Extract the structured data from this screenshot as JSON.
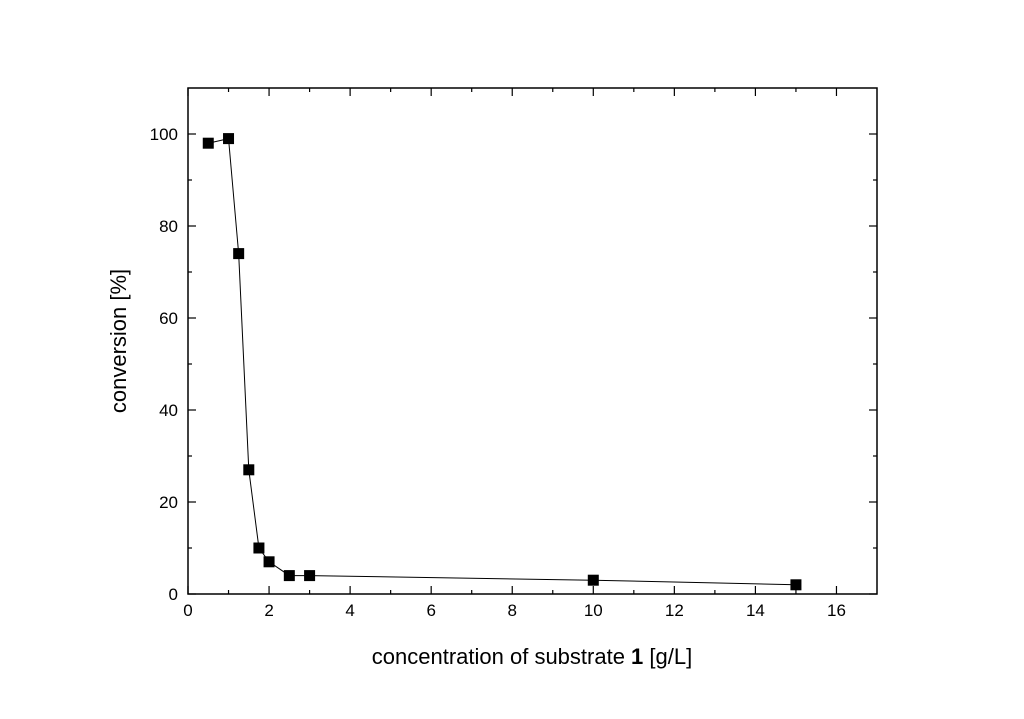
{
  "chart_data": {
    "type": "line",
    "x_label": [
      "concentration of substrate ",
      "1",
      " [g/L]"
    ],
    "y_label": "conversion [%]",
    "x": [
      0.5,
      1,
      1.25,
      1.5,
      1.75,
      2,
      2.5,
      3,
      10,
      15
    ],
    "series": [
      {
        "color": "#000000",
        "values": [
          98,
          99,
          74,
          27,
          10,
          7,
          4,
          4,
          3,
          2
        ]
      }
    ],
    "xlim": [
      0,
      17
    ],
    "xticks": [
      0,
      2,
      4,
      6,
      8,
      10,
      12,
      14,
      16
    ],
    "ylim": [
      0,
      110
    ],
    "yticks": [
      0,
      20,
      40,
      60,
      80,
      100
    ],
    "grid": false
  }
}
